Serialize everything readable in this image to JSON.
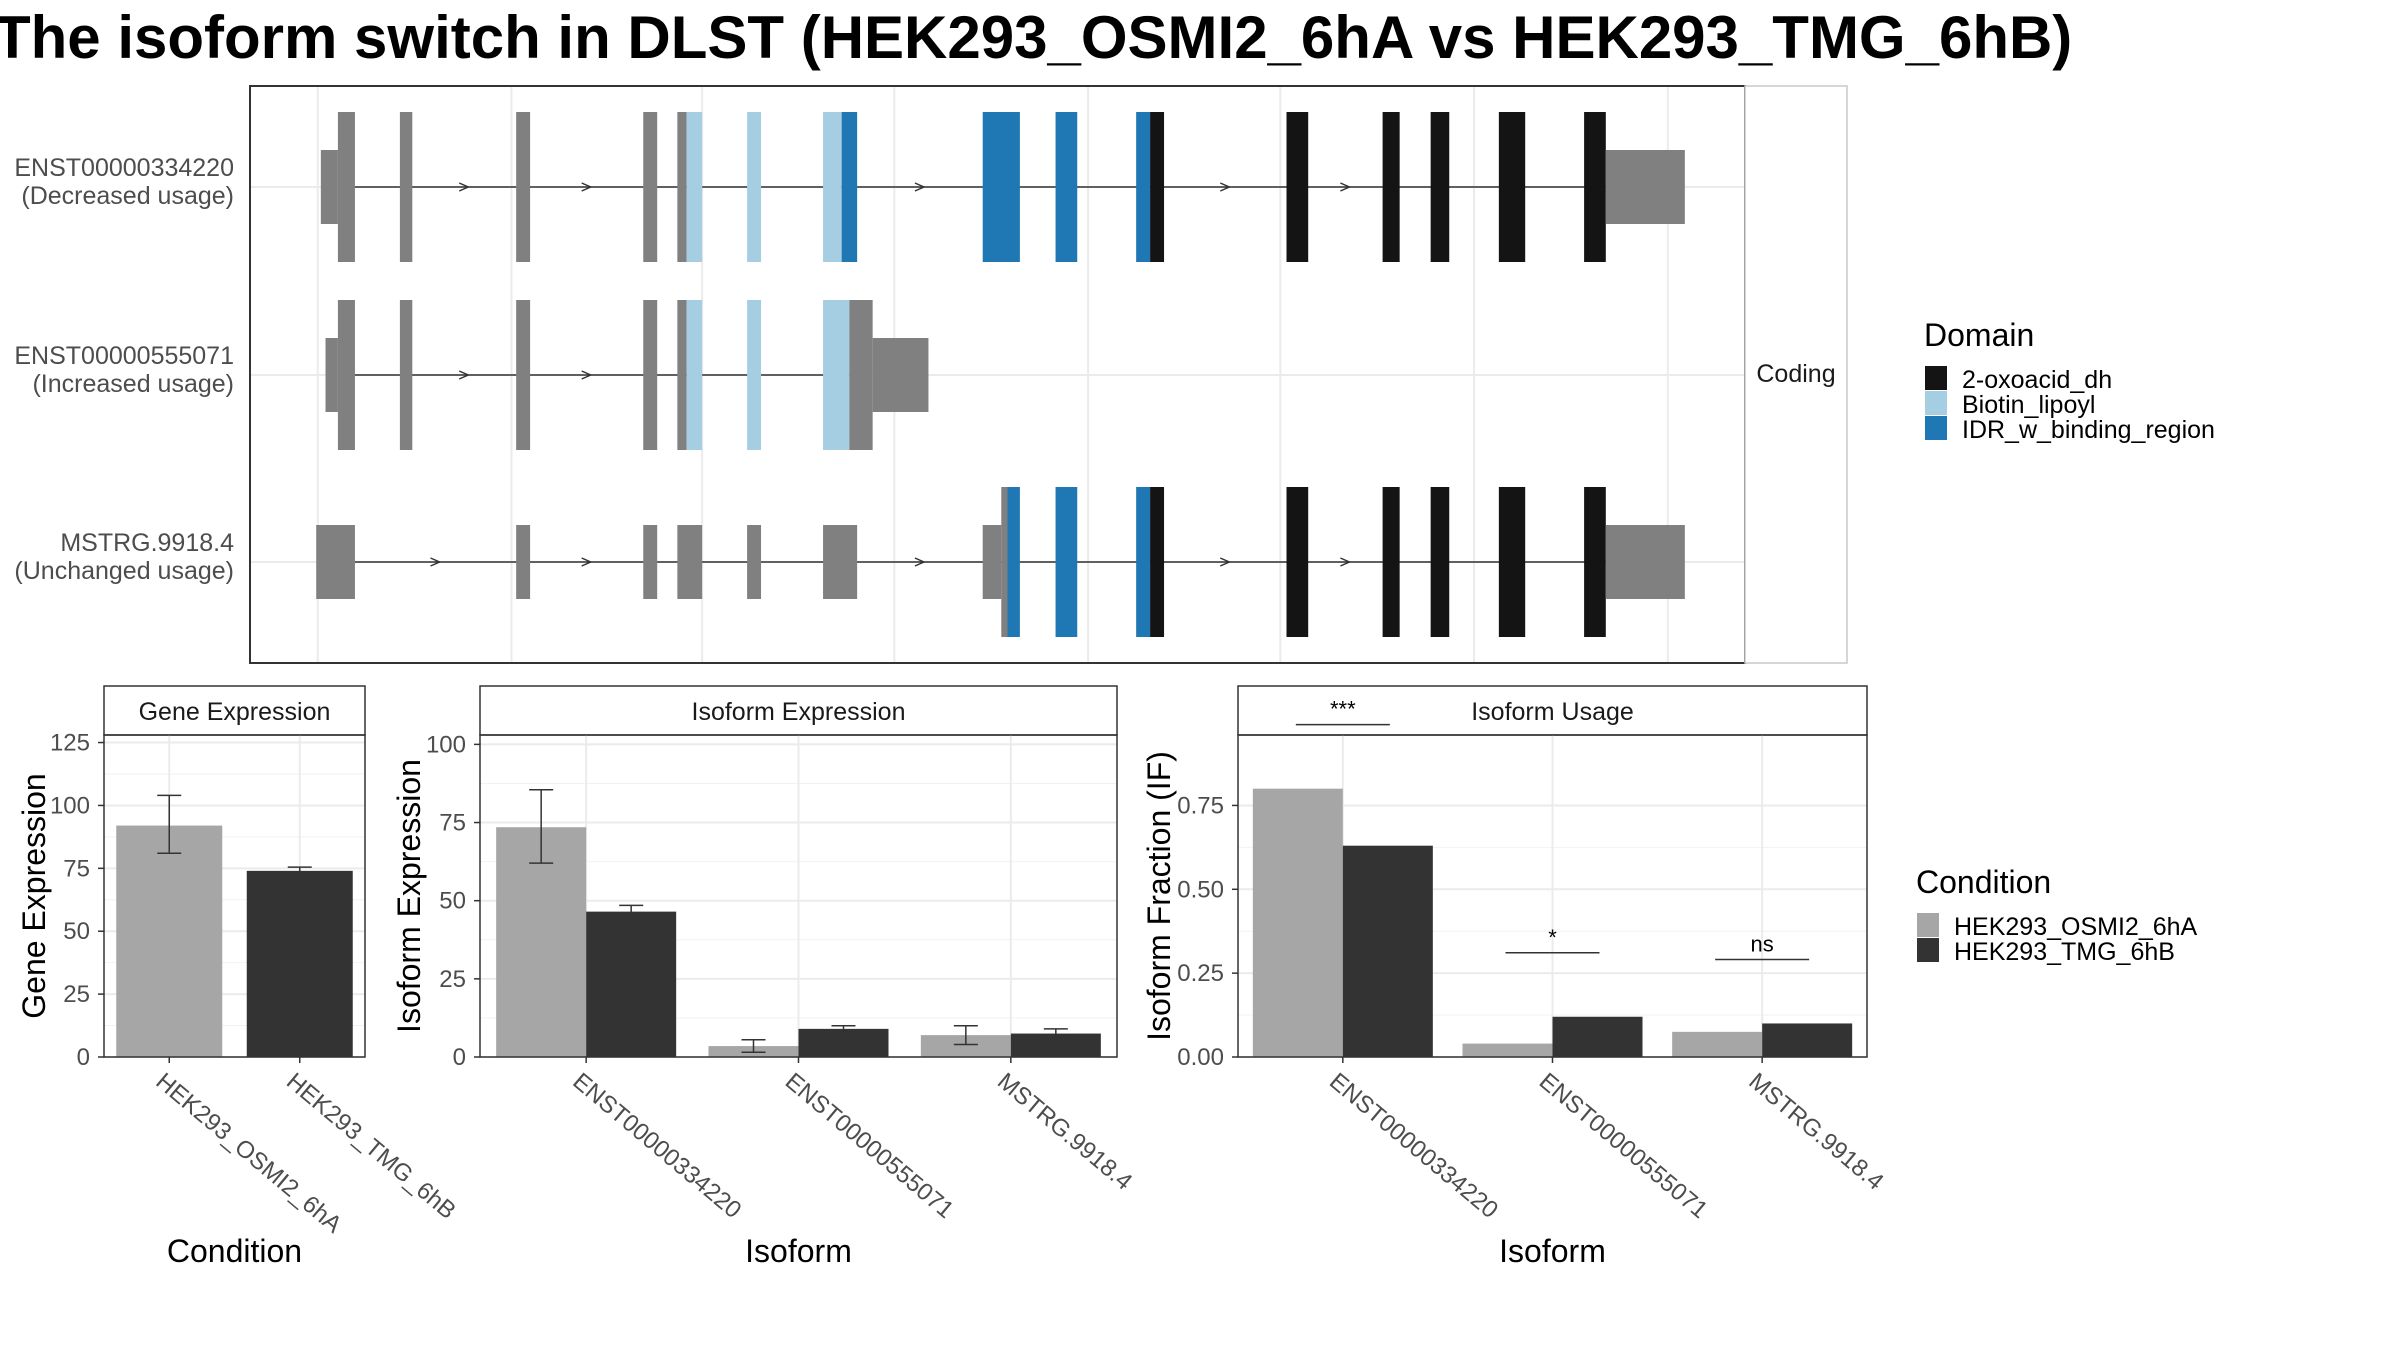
{
  "title": "The isoform switch in DLST (HEK293_OSMI2_6hA vs HEK293_TMG_6hB)",
  "colors": {
    "utr": "#808080",
    "domain_2oxoacid": "#141414",
    "domain_biotin": "#a6cee3",
    "domain_idr": "#1f78b4",
    "cond_a": "#a6a6a6",
    "cond_b": "#333333",
    "grid": "#ebebeb",
    "panel_border": "#333333"
  },
  "structure": {
    "facet_label": "Coding",
    "transcripts": [
      {
        "id": "ENST00000334220",
        "usage": "(Decreased usage)",
        "exons": [
          {
            "s": 207,
            "e": 218,
            "t": "utr"
          },
          {
            "s": 218,
            "e": 229,
            "t": "cds",
            "dom": [
              "o"
            ]
          },
          {
            "s": 258,
            "e": 266,
            "t": "cds",
            "dom": [
              "o"
            ]
          },
          {
            "s": 333,
            "e": 342,
            "t": "cds",
            "dom": [
              "o"
            ]
          },
          {
            "s": 415,
            "e": 424,
            "t": "cds",
            "dom": [
              "o"
            ]
          },
          {
            "s": 437,
            "e": 443,
            "t": "cds",
            "dom": [
              "o"
            ]
          },
          {
            "s": 443,
            "e": 453,
            "t": "cds",
            "dom": [
              "b"
            ]
          },
          {
            "s": 482,
            "e": 491,
            "t": "cds",
            "dom": [
              "b"
            ]
          },
          {
            "s": 531,
            "e": 543,
            "t": "cds",
            "dom": [
              "b"
            ]
          },
          {
            "s": 543,
            "e": 553,
            "t": "cds",
            "dom": [
              "i"
            ]
          },
          {
            "s": 634,
            "e": 658,
            "t": "cds",
            "dom": [
              "i"
            ]
          },
          {
            "s": 681,
            "e": 695,
            "t": "cds",
            "dom": [
              "i"
            ]
          },
          {
            "s": 733,
            "e": 742,
            "t": "cds",
            "dom": [
              "i"
            ]
          },
          {
            "s": 742,
            "e": 751,
            "t": "cds",
            "dom": [
              "x"
            ]
          },
          {
            "s": 830,
            "e": 844,
            "t": "cds",
            "dom": [
              "x"
            ]
          },
          {
            "s": 892,
            "e": 903,
            "t": "cds",
            "dom": [
              "x"
            ]
          },
          {
            "s": 923,
            "e": 935,
            "t": "cds",
            "dom": [
              "x"
            ]
          },
          {
            "s": 967,
            "e": 984,
            "t": "cds",
            "dom": [
              "x"
            ]
          },
          {
            "s": 1022,
            "e": 1036,
            "t": "cds",
            "dom": [
              "x"
            ]
          },
          {
            "s": 1036,
            "e": 1087,
            "t": "utr"
          }
        ],
        "intron": [
          218,
          1036
        ]
      },
      {
        "id": "ENST00000555071",
        "usage": "(Increased usage)",
        "exons": [
          {
            "s": 210,
            "e": 218,
            "t": "utr"
          },
          {
            "s": 218,
            "e": 229,
            "t": "cds",
            "dom": [
              "o"
            ]
          },
          {
            "s": 258,
            "e": 266,
            "t": "cds",
            "dom": [
              "o"
            ]
          },
          {
            "s": 333,
            "e": 342,
            "t": "cds",
            "dom": [
              "o"
            ]
          },
          {
            "s": 415,
            "e": 424,
            "t": "cds",
            "dom": [
              "o"
            ]
          },
          {
            "s": 437,
            "e": 443,
            "t": "cds",
            "dom": [
              "o"
            ]
          },
          {
            "s": 443,
            "e": 453,
            "t": "cds",
            "dom": [
              "b"
            ]
          },
          {
            "s": 482,
            "e": 491,
            "t": "cds",
            "dom": [
              "b"
            ]
          },
          {
            "s": 531,
            "e": 548,
            "t": "cds",
            "dom": [
              "b"
            ]
          },
          {
            "s": 548,
            "e": 563,
            "t": "cds",
            "dom": [
              "o"
            ]
          },
          {
            "s": 563,
            "e": 599,
            "t": "utr"
          }
        ],
        "intron": [
          218,
          548
        ]
      },
      {
        "id": "MSTRG.9918.4",
        "usage": "(Unchanged usage)",
        "exons": [
          {
            "s": 204,
            "e": 229,
            "t": "utr"
          },
          {
            "s": 333,
            "e": 342,
            "t": "utr"
          },
          {
            "s": 415,
            "e": 424,
            "t": "utr"
          },
          {
            "s": 437,
            "e": 453,
            "t": "utr"
          },
          {
            "s": 482,
            "e": 491,
            "t": "utr"
          },
          {
            "s": 531,
            "e": 553,
            "t": "utr"
          },
          {
            "s": 634,
            "e": 646,
            "t": "utr"
          },
          {
            "s": 646,
            "e": 650,
            "t": "cds",
            "dom": [
              "o"
            ]
          },
          {
            "s": 650,
            "e": 658,
            "t": "cds",
            "dom": [
              "i"
            ]
          },
          {
            "s": 681,
            "e": 695,
            "t": "cds",
            "dom": [
              "i"
            ]
          },
          {
            "s": 733,
            "e": 742,
            "t": "cds",
            "dom": [
              "i"
            ]
          },
          {
            "s": 742,
            "e": 751,
            "t": "cds",
            "dom": [
              "x"
            ]
          },
          {
            "s": 830,
            "e": 844,
            "t": "cds",
            "dom": [
              "x"
            ]
          },
          {
            "s": 892,
            "e": 903,
            "t": "cds",
            "dom": [
              "x"
            ]
          },
          {
            "s": 923,
            "e": 935,
            "t": "cds",
            "dom": [
              "x"
            ]
          },
          {
            "s": 967,
            "e": 984,
            "t": "cds",
            "dom": [
              "x"
            ]
          },
          {
            "s": 1022,
            "e": 1036,
            "t": "cds",
            "dom": [
              "x"
            ]
          },
          {
            "s": 1036,
            "e": 1087,
            "t": "utr"
          }
        ],
        "intron": [
          229,
          1036
        ]
      }
    ]
  },
  "domain_legend": {
    "title": "Domain",
    "items": [
      {
        "label": "2-oxoacid_dh",
        "color": "#141414"
      },
      {
        "label": "Biotin_lipoyl",
        "color": "#a6cee3"
      },
      {
        "label": "IDR_w_binding_region",
        "color": "#1f78b4"
      }
    ]
  },
  "condition_legend": {
    "title": "Condition",
    "items": [
      {
        "label": "HEK293_OSMI2_6hA",
        "color": "#a6a6a6"
      },
      {
        "label": "HEK293_TMG_6hB",
        "color": "#333333"
      }
    ]
  },
  "chart_data": [
    {
      "type": "bar",
      "title": "Gene Expression",
      "xlabel": "Condition",
      "ylabel": "Gene Expression",
      "ylim": [
        0,
        128
      ],
      "yticks": [
        0,
        25,
        50,
        75,
        100,
        125
      ],
      "categories": [
        "HEK293_OSMI2_6hA",
        "HEK293_TMG_6hB"
      ],
      "series": [
        {
          "name": "HEK293_OSMI2_6hA",
          "values": [
            92,
            null
          ],
          "err_low": [
            81,
            null
          ],
          "err_high": [
            104,
            null
          ]
        },
        {
          "name": "HEK293_TMG_6hB",
          "values": [
            null,
            74
          ],
          "err_low": [
            null,
            72.5
          ],
          "err_high": [
            null,
            75.5
          ]
        }
      ]
    },
    {
      "type": "bar",
      "title": "Isoform Expression",
      "xlabel": "Isoform",
      "ylabel": "Isoform Expression",
      "ylim": [
        0,
        103
      ],
      "yticks": [
        0,
        25,
        50,
        75,
        100
      ],
      "categories": [
        "ENST00000334220",
        "ENST00000555071",
        "MSTRG.9918.4"
      ],
      "series": [
        {
          "name": "HEK293_OSMI2_6hA",
          "values": [
            73.5,
            3.5,
            7
          ],
          "err_low": [
            62,
            1.5,
            4
          ],
          "err_high": [
            85.5,
            5.5,
            10
          ]
        },
        {
          "name": "HEK293_TMG_6hB",
          "values": [
            46.5,
            9,
            7.5
          ],
          "err_low": [
            44.5,
            8,
            6
          ],
          "err_high": [
            48.5,
            10,
            9
          ]
        }
      ]
    },
    {
      "type": "bar",
      "title": "Isoform Usage",
      "xlabel": "Isoform",
      "ylabel": "Isoform Fraction (IF)",
      "ylim": [
        0,
        0.96
      ],
      "yticks": [
        0,
        0.25,
        0.5,
        0.75
      ],
      "ytick_labels": [
        "0.00",
        "0.25",
        "0.50",
        "0.75"
      ],
      "categories": [
        "ENST00000334220",
        "ENST00000555071",
        "MSTRG.9918.4"
      ],
      "series": [
        {
          "name": "HEK293_OSMI2_6hA",
          "values": [
            0.8,
            0.04,
            0.075
          ]
        },
        {
          "name": "HEK293_TMG_6hB",
          "values": [
            0.63,
            0.12,
            0.1
          ]
        }
      ],
      "significance": [
        "***",
        "*",
        "ns"
      ]
    }
  ]
}
